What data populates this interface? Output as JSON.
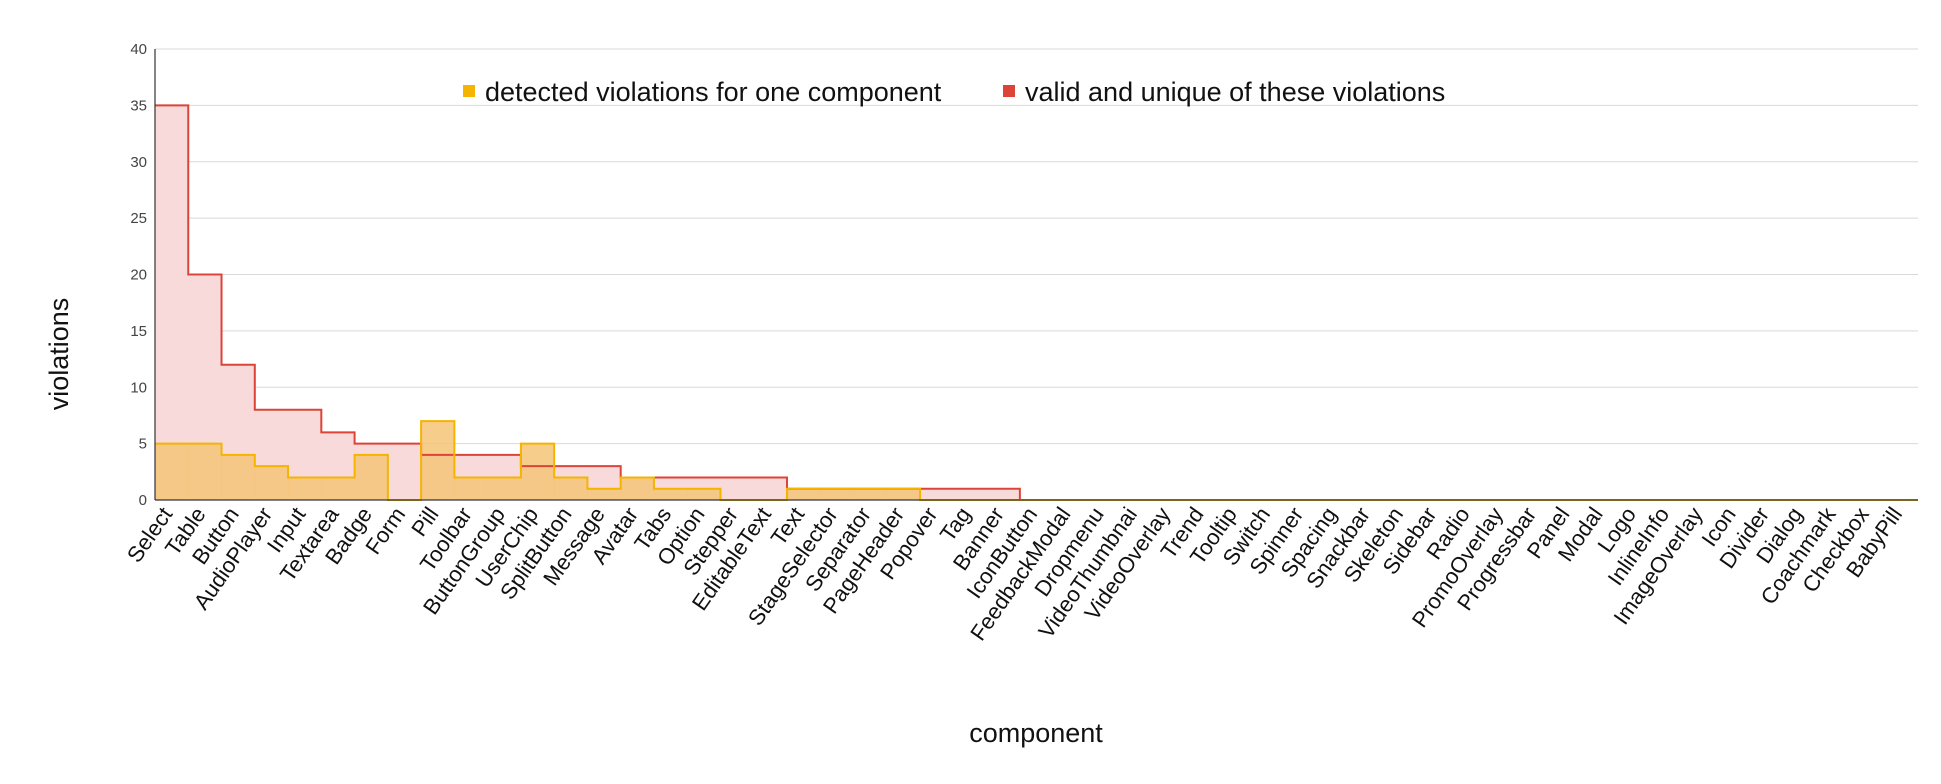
{
  "chart_data": {
    "type": "area",
    "step": true,
    "title": "",
    "xlabel": "component",
    "ylabel": "violations",
    "ylim": [
      0,
      40
    ],
    "yticks": [
      0,
      5,
      10,
      15,
      20,
      25,
      30,
      35,
      40
    ],
    "grid": true,
    "legend_position": "top",
    "categories": [
      "Select",
      "Table",
      "Button",
      "AudioPlayer",
      "Input",
      "Textarea",
      "Badge",
      "Form",
      "Pill",
      "Toolbar",
      "ButtonGroup",
      "UserChip",
      "SplitButton",
      "Message",
      "Avatar",
      "Tabs",
      "Option",
      "Stepper",
      "EditableText",
      "Text",
      "StageSelector",
      "Separator",
      "PageHeader",
      "Popover",
      "Tag",
      "Banner",
      "IconButton",
      "FeedbackModal",
      "Dropmenu",
      "VideoThumbnai",
      "VideoOverlay",
      "Trend",
      "Tooltip",
      "Switch",
      "Spinner",
      "Spacing",
      "Snackbar",
      "Skeleton",
      "Sidebar",
      "Radio",
      "PromoOverlay",
      "Progressbar",
      "Panel",
      "Modal",
      "Logo",
      "InlineInfo",
      "ImageOverlay",
      "Icon",
      "Divider",
      "Dialog",
      "Coachmark",
      "Checkbox",
      "BabyPill"
    ],
    "series": [
      {
        "name": "detected violations for one component",
        "color": "#f4b400",
        "fill": "#f6c478",
        "values": [
          5,
          5,
          4,
          3,
          2,
          2,
          4,
          0,
          7,
          2,
          2,
          5,
          2,
          1,
          2,
          1,
          1,
          0,
          0,
          1,
          1,
          1,
          1,
          0,
          0,
          0,
          0,
          0,
          0,
          0,
          0,
          0,
          0,
          0,
          0,
          0,
          0,
          0,
          0,
          0,
          0,
          0,
          0,
          0,
          0,
          0,
          0,
          0,
          0,
          0,
          0,
          0,
          0
        ]
      },
      {
        "name": "valid and unique of these violations",
        "color": "#db4437",
        "fill": "#f8dadb",
        "values": [
          35,
          20,
          12,
          8,
          8,
          6,
          5,
          5,
          4,
          4,
          4,
          3,
          3,
          3,
          2,
          2,
          2,
          2,
          2,
          1,
          1,
          1,
          1,
          1,
          1,
          1,
          0,
          0,
          0,
          0,
          0,
          0,
          0,
          0,
          0,
          0,
          0,
          0,
          0,
          0,
          0,
          0,
          0,
          0,
          0,
          0,
          0,
          0,
          0,
          0,
          0,
          0,
          0
        ]
      }
    ]
  }
}
